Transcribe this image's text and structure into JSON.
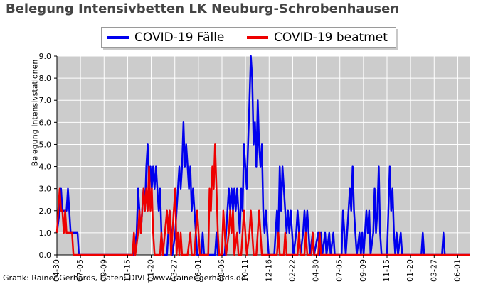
{
  "chart_data": {
    "type": "line",
    "title": "Belegung Intensivbetten LK Neuburg-Schrobenhausen",
    "ylabel": "Belegung Intensivstationen",
    "xlabel": "",
    "ylim": [
      0,
      9
    ],
    "yticks": [
      "0.0",
      "1.0",
      "2.0",
      "3.0",
      "4.0",
      "5.0",
      "6.0",
      "7.0",
      "8.0",
      "9.0"
    ],
    "xticks": [
      "04-30",
      "07-05",
      "09-09",
      "11-15",
      "01-20",
      "03-27",
      "06-01",
      "08-06",
      "10-11",
      "12-16",
      "02-22",
      "04-30",
      "07-05",
      "09-09",
      "11-15",
      "01-20",
      "03-27",
      "06-01"
    ],
    "grid": true,
    "legend_position": "top",
    "background": "#cccccc",
    "series": [
      {
        "name": "COVID-19 Fälle",
        "color": "#0000ee",
        "points": [
          [
            0,
            1
          ],
          [
            4,
            2
          ],
          [
            6,
            3
          ],
          [
            8,
            2
          ],
          [
            10,
            2
          ],
          [
            12,
            2
          ],
          [
            14,
            2
          ],
          [
            16,
            3
          ],
          [
            18,
            2
          ],
          [
            20,
            1
          ],
          [
            22,
            1
          ],
          [
            30,
            1
          ],
          [
            32,
            0
          ],
          [
            110,
            0
          ],
          [
            112,
            0
          ],
          [
            116,
            1
          ],
          [
            118,
            3
          ],
          [
            120,
            2
          ],
          [
            122,
            1
          ],
          [
            124,
            2
          ],
          [
            126,
            3
          ],
          [
            128,
            2
          ],
          [
            130,
            4
          ],
          [
            132,
            5
          ],
          [
            134,
            3
          ],
          [
            136,
            4
          ],
          [
            138,
            3
          ],
          [
            140,
            4
          ],
          [
            142,
            3
          ],
          [
            144,
            4
          ],
          [
            146,
            3
          ],
          [
            148,
            2
          ],
          [
            150,
            3
          ],
          [
            152,
            1
          ],
          [
            154,
            0
          ],
          [
            160,
            0
          ],
          [
            162,
            1
          ],
          [
            164,
            2
          ],
          [
            166,
            1
          ],
          [
            168,
            0
          ],
          [
            172,
            1
          ],
          [
            174,
            2
          ],
          [
            176,
            3
          ],
          [
            178,
            4
          ],
          [
            180,
            3
          ],
          [
            182,
            4
          ],
          [
            184,
            6
          ],
          [
            186,
            4
          ],
          [
            188,
            5
          ],
          [
            190,
            4
          ],
          [
            192,
            3
          ],
          [
            194,
            4
          ],
          [
            196,
            2
          ],
          [
            198,
            3
          ],
          [
            200,
            2
          ],
          [
            202,
            1
          ],
          [
            204,
            0
          ],
          [
            210,
            0
          ],
          [
            212,
            1
          ],
          [
            214,
            0
          ],
          [
            230,
            0
          ],
          [
            232,
            1
          ],
          [
            234,
            0
          ],
          [
            244,
            0
          ],
          [
            246,
            1
          ],
          [
            248,
            2
          ],
          [
            250,
            3
          ],
          [
            252,
            2
          ],
          [
            254,
            3
          ],
          [
            256,
            2
          ],
          [
            258,
            3
          ],
          [
            260,
            2
          ],
          [
            262,
            3
          ],
          [
            264,
            2
          ],
          [
            266,
            1
          ],
          [
            268,
            3
          ],
          [
            270,
            2
          ],
          [
            272,
            5
          ],
          [
            274,
            4
          ],
          [
            276,
            3
          ],
          [
            278,
            5
          ],
          [
            280,
            7
          ],
          [
            282,
            9
          ],
          [
            284,
            8
          ],
          [
            286,
            5
          ],
          [
            288,
            6
          ],
          [
            290,
            4
          ],
          [
            292,
            7
          ],
          [
            294,
            5
          ],
          [
            296,
            4
          ],
          [
            298,
            5
          ],
          [
            300,
            2
          ],
          [
            302,
            1
          ],
          [
            304,
            2
          ],
          [
            306,
            1
          ],
          [
            308,
            0
          ],
          [
            316,
            0
          ],
          [
            318,
            1
          ],
          [
            320,
            2
          ],
          [
            322,
            1
          ],
          [
            324,
            4
          ],
          [
            326,
            2
          ],
          [
            328,
            4
          ],
          [
            330,
            3
          ],
          [
            332,
            2
          ],
          [
            334,
            1
          ],
          [
            336,
            2
          ],
          [
            338,
            1
          ],
          [
            340,
            2
          ],
          [
            342,
            1
          ],
          [
            344,
            0
          ],
          [
            348,
            1
          ],
          [
            350,
            2
          ],
          [
            352,
            1
          ],
          [
            354,
            0
          ],
          [
            358,
            1
          ],
          [
            360,
            2
          ],
          [
            362,
            1
          ],
          [
            364,
            2
          ],
          [
            366,
            1
          ],
          [
            368,
            0
          ],
          [
            372,
            1
          ],
          [
            374,
            0
          ],
          [
            380,
            1
          ],
          [
            382,
            0
          ],
          [
            384,
            1
          ],
          [
            386,
            0
          ],
          [
            390,
            1
          ],
          [
            392,
            0
          ],
          [
            396,
            1
          ],
          [
            398,
            0
          ],
          [
            402,
            1
          ],
          [
            404,
            0
          ],
          [
            410,
            0
          ],
          [
            414,
            0
          ],
          [
            416,
            2
          ],
          [
            418,
            1
          ],
          [
            420,
            0
          ],
          [
            424,
            2
          ],
          [
            426,
            3
          ],
          [
            428,
            2
          ],
          [
            430,
            4
          ],
          [
            432,
            2
          ],
          [
            434,
            1
          ],
          [
            436,
            0
          ],
          [
            440,
            1
          ],
          [
            442,
            0
          ],
          [
            444,
            1
          ],
          [
            446,
            0
          ],
          [
            450,
            2
          ],
          [
            452,
            1
          ],
          [
            454,
            2
          ],
          [
            456,
            0
          ],
          [
            460,
            1
          ],
          [
            462,
            3
          ],
          [
            464,
            1
          ],
          [
            466,
            2
          ],
          [
            468,
            4
          ],
          [
            470,
            1
          ],
          [
            472,
            0
          ],
          [
            480,
            0
          ],
          [
            482,
            2
          ],
          [
            484,
            4
          ],
          [
            486,
            2
          ],
          [
            488,
            3
          ],
          [
            490,
            1
          ],
          [
            492,
            0
          ],
          [
            494,
            1
          ],
          [
            496,
            0
          ],
          [
            500,
            1
          ],
          [
            502,
            0
          ],
          [
            530,
            0
          ],
          [
            532,
            1
          ],
          [
            534,
            0
          ],
          [
            560,
            0
          ],
          [
            562,
            1
          ],
          [
            564,
            0
          ],
          [
            600,
            0
          ]
        ]
      },
      {
        "name": "COVID-19 beatmet",
        "color": "#ee0000",
        "points": [
          [
            0,
            1
          ],
          [
            2,
            2
          ],
          [
            4,
            3
          ],
          [
            6,
            2
          ],
          [
            8,
            2
          ],
          [
            10,
            1
          ],
          [
            12,
            2
          ],
          [
            14,
            1
          ],
          [
            16,
            1
          ],
          [
            22,
            1
          ],
          [
            24,
            0
          ],
          [
            110,
            0
          ],
          [
            112,
            1
          ],
          [
            114,
            0
          ],
          [
            118,
            1
          ],
          [
            120,
            2
          ],
          [
            122,
            1
          ],
          [
            124,
            2
          ],
          [
            126,
            3
          ],
          [
            128,
            2
          ],
          [
            130,
            3
          ],
          [
            132,
            2
          ],
          [
            134,
            4
          ],
          [
            136,
            2
          ],
          [
            138,
            3
          ],
          [
            140,
            1
          ],
          [
            142,
            0
          ],
          [
            150,
            0
          ],
          [
            152,
            1
          ],
          [
            154,
            0
          ],
          [
            160,
            2
          ],
          [
            162,
            1
          ],
          [
            164,
            2
          ],
          [
            166,
            0
          ],
          [
            168,
            1
          ],
          [
            170,
            2
          ],
          [
            172,
            3
          ],
          [
            174,
            0
          ],
          [
            176,
            1
          ],
          [
            178,
            0
          ],
          [
            180,
            1
          ],
          [
            182,
            0
          ],
          [
            190,
            0
          ],
          [
            194,
            1
          ],
          [
            196,
            0
          ],
          [
            200,
            0
          ],
          [
            204,
            2
          ],
          [
            206,
            1
          ],
          [
            208,
            0
          ],
          [
            220,
            0
          ],
          [
            222,
            3
          ],
          [
            224,
            2
          ],
          [
            226,
            4
          ],
          [
            228,
            3
          ],
          [
            230,
            5
          ],
          [
            232,
            3
          ],
          [
            234,
            1
          ],
          [
            236,
            0
          ],
          [
            240,
            0
          ],
          [
            242,
            2
          ],
          [
            244,
            1
          ],
          [
            246,
            0
          ],
          [
            250,
            1
          ],
          [
            252,
            2
          ],
          [
            254,
            1
          ],
          [
            256,
            2
          ],
          [
            258,
            0
          ],
          [
            262,
            1
          ],
          [
            264,
            0
          ],
          [
            268,
            0
          ],
          [
            270,
            1
          ],
          [
            272,
            2
          ],
          [
            274,
            1
          ],
          [
            276,
            0
          ],
          [
            280,
            1
          ],
          [
            282,
            2
          ],
          [
            284,
            1
          ],
          [
            286,
            0
          ],
          [
            290,
            0
          ],
          [
            292,
            1
          ],
          [
            294,
            2
          ],
          [
            296,
            1
          ],
          [
            298,
            0
          ],
          [
            320,
            0
          ],
          [
            322,
            1
          ],
          [
            324,
            0
          ],
          [
            330,
            0
          ],
          [
            332,
            1
          ],
          [
            334,
            0
          ],
          [
            350,
            0
          ],
          [
            352,
            1
          ],
          [
            354,
            0
          ],
          [
            360,
            0
          ],
          [
            362,
            1
          ],
          [
            364,
            0
          ],
          [
            370,
            0
          ],
          [
            372,
            1
          ],
          [
            374,
            0
          ],
          [
            380,
            0
          ],
          [
            382,
            1
          ],
          [
            384,
            0
          ],
          [
            600,
            0
          ]
        ]
      }
    ]
  },
  "footer": "Grafik: Rainer Gerhards, Daten: DIVI | www.rainer-gerhards.de"
}
